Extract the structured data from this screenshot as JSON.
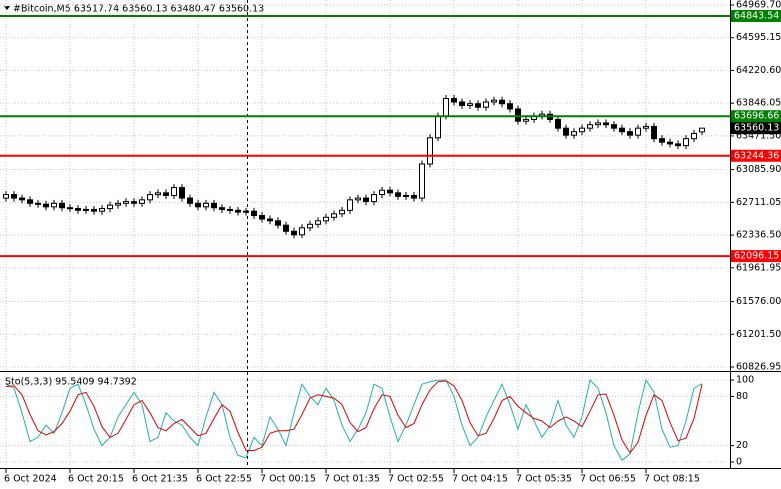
{
  "chart_data": [
    {
      "type": "candlestick",
      "title": "#Bitcoin,M5  63517.74 63560.13 63480.47 63560.13",
      "xlim": [
        -0.75,
        90.5
      ],
      "ylim": [
        60792.6,
        65026.9
      ],
      "grid": true,
      "yticks": [
        {
          "value": 64969.7,
          "label": "64969.70"
        },
        {
          "value": 64595.15,
          "label": "64595.15"
        },
        {
          "value": 64220.6,
          "label": "64220.60"
        },
        {
          "value": 63846.05,
          "label": "63846.05"
        },
        {
          "value": 63471.5,
          "label": "63471.50"
        },
        {
          "value": 63085.9,
          "label": "63085.90"
        },
        {
          "value": 62711.05,
          "label": "62711.05"
        },
        {
          "value": 62336.5,
          "label": "62336.50"
        },
        {
          "value": 61961.95,
          "label": "61961.95"
        },
        {
          "value": 61576.0,
          "label": "61576.00"
        },
        {
          "value": 61201.5,
          "label": "61201.50"
        },
        {
          "value": 60826.95,
          "label": "60826.95"
        }
      ],
      "levels": [
        {
          "value": 64843.54,
          "color": "#008000"
        },
        {
          "value": 63696.66,
          "color": "#008000"
        },
        {
          "value": 63244.36,
          "color": "#ff0000"
        },
        {
          "value": 62096.15,
          "color": "#ff0000"
        }
      ],
      "last_price": 63560.13,
      "open": [
        62760,
        62800,
        62760,
        62740,
        62700,
        62690,
        62660,
        62700,
        62650,
        62640,
        62620,
        62630,
        62610,
        62640,
        62680,
        62700,
        62720,
        62700,
        62740,
        62800,
        62820,
        62790,
        62880,
        62760,
        62700,
        62660,
        62700,
        62650,
        62630,
        62620,
        62600,
        62610,
        62560,
        62520,
        62500,
        62450,
        62380,
        62340,
        62420,
        62460,
        62500,
        62540,
        62580,
        62620,
        62740,
        62760,
        62720,
        62800,
        62850,
        62820,
        62780,
        62790,
        62760,
        63150,
        63450,
        63700,
        63900,
        63860,
        63820,
        63840,
        63800,
        63860,
        63880,
        63840,
        63780,
        63640,
        63660,
        63700,
        63720,
        63660,
        63560,
        63480,
        63520,
        63560,
        63600,
        63620,
        63600,
        63560,
        63520,
        63480,
        63560,
        63580,
        63440,
        63400,
        63380,
        63360,
        63440,
        63517.74
      ],
      "high": [
        62840,
        62840,
        62800,
        62780,
        62740,
        62730,
        62740,
        62740,
        62690,
        62680,
        62670,
        62670,
        62680,
        62720,
        62740,
        62760,
        62760,
        62780,
        62840,
        62860,
        62860,
        62920,
        62920,
        62800,
        62740,
        62740,
        62740,
        62690,
        62670,
        62660,
        62650,
        62650,
        62600,
        62560,
        62540,
        62490,
        62420,
        62460,
        62500,
        62540,
        62580,
        62620,
        62660,
        62780,
        62800,
        62800,
        62840,
        62890,
        62890,
        62860,
        62830,
        62830,
        63190,
        63490,
        63740,
        63940,
        63940,
        63900,
        63880,
        63880,
        63900,
        63920,
        63920,
        63880,
        63820,
        63700,
        63740,
        63760,
        63760,
        63700,
        63600,
        63560,
        63600,
        63640,
        63660,
        63660,
        63640,
        63600,
        63560,
        63600,
        63620,
        63620,
        63480,
        63440,
        63420,
        63480,
        63540,
        63560.13
      ],
      "low": [
        62720,
        62720,
        62700,
        62660,
        62650,
        62620,
        62620,
        62610,
        62600,
        62580,
        62580,
        62570,
        62570,
        62600,
        62640,
        62660,
        62660,
        62660,
        62700,
        62760,
        62750,
        62750,
        62720,
        62660,
        62620,
        62620,
        62610,
        62590,
        62580,
        62560,
        62560,
        62520,
        62480,
        62460,
        62410,
        62340,
        62300,
        62300,
        62380,
        62420,
        62460,
        62500,
        62540,
        62580,
        62700,
        62680,
        62680,
        62760,
        62780,
        62740,
        62740,
        62720,
        62720,
        63110,
        63410,
        63660,
        63820,
        63780,
        63780,
        63760,
        63760,
        63820,
        63800,
        63740,
        63600,
        63600,
        63620,
        63660,
        63620,
        63520,
        63440,
        63440,
        63480,
        63520,
        63560,
        63560,
        63520,
        63480,
        63440,
        63440,
        63520,
        63400,
        63360,
        63340,
        63320,
        63320,
        63400,
        63480.47
      ],
      "close": [
        62800,
        62760,
        62740,
        62700,
        62690,
        62660,
        62700,
        62650,
        62640,
        62620,
        62630,
        62610,
        62640,
        62680,
        62700,
        62720,
        62700,
        62740,
        62800,
        62820,
        62790,
        62880,
        62760,
        62700,
        62660,
        62700,
        62650,
        62630,
        62620,
        62600,
        62610,
        62560,
        62520,
        62500,
        62450,
        62380,
        62340,
        62420,
        62460,
        62500,
        62540,
        62580,
        62620,
        62740,
        62760,
        62720,
        62800,
        62850,
        62820,
        62780,
        62790,
        62760,
        63150,
        63450,
        63700,
        63900,
        63860,
        63820,
        63840,
        63800,
        63860,
        63880,
        63840,
        63780,
        63640,
        63660,
        63700,
        63720,
        63660,
        63560,
        63480,
        63520,
        63560,
        63600,
        63620,
        63600,
        63560,
        63520,
        63480,
        63560,
        63580,
        63440,
        63400,
        63380,
        63360,
        63440,
        63500,
        63560.13
      ]
    },
    {
      "type": "line",
      "title": "Sto(5,3,3) 95.5409 94.7392",
      "xlim": [
        -0.75,
        90.5
      ],
      "ylim": [
        -7.4,
        107.4
      ],
      "yticks": [
        100,
        80,
        20,
        0
      ],
      "grid": true,
      "xticks": [
        {
          "value": 0,
          "label": "6 Oct 2024"
        },
        {
          "value": 8,
          "label": "6 Oct 20:15"
        },
        {
          "value": 16,
          "label": "6 Oct 21:35"
        },
        {
          "value": 24,
          "label": "6 Oct 22:55"
        },
        {
          "value": 32,
          "label": "7 Oct 00:15"
        },
        {
          "value": 40,
          "label": "7 Oct 01:35"
        },
        {
          "value": 48,
          "label": "7 Oct 02:55"
        },
        {
          "value": 56,
          "label": "7 Oct 04:15"
        },
        {
          "value": 64,
          "label": "7 Oct 05:35"
        },
        {
          "value": 72,
          "label": "7 Oct 06:55"
        },
        {
          "value": 80,
          "label": "7 Oct 08:15"
        }
      ],
      "series": [
        {
          "color": "#20b2aa",
          "values": [
            95,
            90,
            60,
            25,
            30,
            45,
            35,
            60,
            90,
            95,
            70,
            40,
            20,
            30,
            55,
            70,
            85,
            70,
            25,
            30,
            60,
            50,
            45,
            30,
            20,
            55,
            85,
            70,
            30,
            8,
            5,
            30,
            20,
            55,
            40,
            20,
            60,
            95,
            80,
            70,
            90,
            75,
            45,
            25,
            40,
            60,
            95,
            90,
            55,
            25,
            45,
            70,
            95,
            98,
            100,
            100,
            80,
            45,
            20,
            30,
            55,
            75,
            95,
            70,
            40,
            70,
            50,
            30,
            45,
            75,
            45,
            30,
            55,
            100,
            90,
            60,
            20,
            2,
            10,
            60,
            100,
            85,
            40,
            18,
            20,
            50,
            90,
            95.5409
          ]
        },
        {
          "color": "#e00000",
          "values": [
            92,
            93,
            82,
            58,
            38,
            33,
            37,
            47,
            62,
            82,
            85,
            68,
            43,
            30,
            35,
            52,
            70,
            75,
            60,
            42,
            38,
            47,
            52,
            42,
            32,
            35,
            53,
            70,
            62,
            36,
            14,
            14,
            18,
            35,
            38,
            38,
            40,
            58,
            78,
            82,
            80,
            78,
            70,
            48,
            37,
            42,
            65,
            82,
            80,
            57,
            42,
            47,
            70,
            88,
            98,
            99,
            93,
            75,
            48,
            32,
            35,
            53,
            75,
            80,
            68,
            60,
            53,
            50,
            42,
            50,
            55,
            50,
            43,
            62,
            82,
            83,
            57,
            27,
            11,
            24,
            57,
            82,
            75,
            48,
            26,
            29,
            53,
            94.7392
          ]
        }
      ]
    }
  ]
}
